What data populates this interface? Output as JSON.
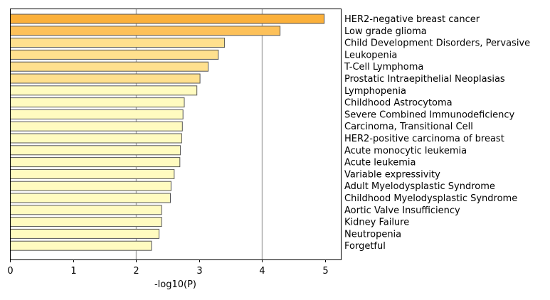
{
  "chart_data": {
    "type": "bar",
    "orientation": "horizontal",
    "title": "",
    "xlabel": "-log10(P)",
    "ylabel": "",
    "xlim": [
      0,
      5.25
    ],
    "xticks": [
      0,
      1,
      2,
      3,
      4,
      5
    ],
    "grid": {
      "vertical_lines_at": [
        2,
        4
      ]
    },
    "legend": "none",
    "category_label_side": "right",
    "categories": [
      "HER2-negative breast cancer",
      "Low grade glioma",
      "Child Development Disorders, Pervasive",
      "Leukopenia",
      "T-Cell Lymphoma",
      "Prostatic Intraepithelial Neoplasias",
      "Lymphopenia",
      "Childhood Astrocytoma",
      "Severe Combined Immunodeficiency",
      "Carcinoma, Transitional Cell",
      "HER2-positive carcinoma of breast",
      "Acute monocytic leukemia",
      "Acute leukemia",
      "Variable expressivity",
      "Adult Myelodysplastic Syndrome",
      "Childhood Myelodysplastic Syndrome",
      "Aortic Valve Insufficiency",
      "Kidney Failure",
      "Neutropenia",
      "Forgetful"
    ],
    "values": [
      4.98,
      4.28,
      3.4,
      3.3,
      3.14,
      3.01,
      2.96,
      2.76,
      2.74,
      2.73,
      2.72,
      2.7,
      2.69,
      2.6,
      2.55,
      2.54,
      2.4,
      2.4,
      2.36,
      2.24
    ],
    "colors": [
      "#fbb03b",
      "#fdc15a",
      "#ffe08e",
      "#ffe08e",
      "#ffe08e",
      "#ffe08e",
      "#fffbc0",
      "#fffbc0",
      "#fffbc0",
      "#fffbc0",
      "#fffbc0",
      "#fffbc0",
      "#fffbc0",
      "#fffbc0",
      "#fffbc0",
      "#fffbc0",
      "#fffbc0",
      "#fffbc0",
      "#fffbc0",
      "#fffbc0"
    ],
    "bar_edge_color": "#555555",
    "grid_color": "#a8a8a8"
  }
}
